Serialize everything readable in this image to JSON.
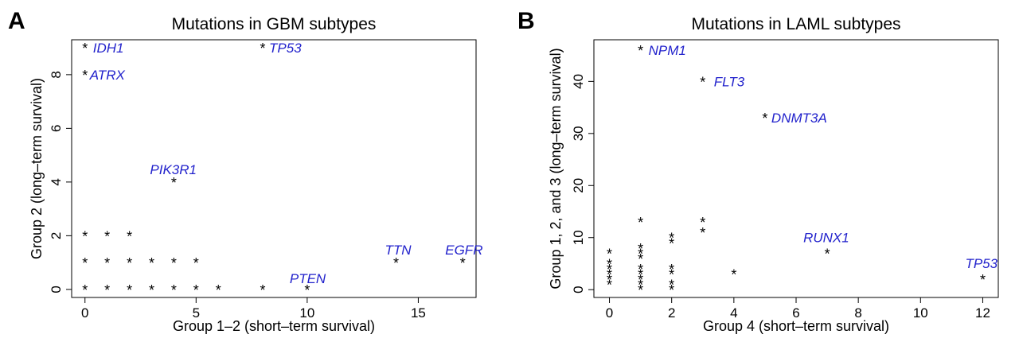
{
  "chart_data": [
    {
      "type": "scatter",
      "panel_letter": "A",
      "title": "Mutations in GBM subtypes",
      "xlabel": "Group 1–2 (short–term survival)",
      "ylabel": "Group 2 (long–term survival)",
      "xlim": [
        -0.6,
        17.6
      ],
      "ylim": [
        -0.3,
        9.3
      ],
      "xticks": [
        0,
        5,
        10,
        15
      ],
      "yticks": [
        0,
        2,
        4,
        6,
        8
      ],
      "label_color": "#2222cc",
      "points": [
        {
          "x": 0,
          "y": 9,
          "label": "IDH1"
        },
        {
          "x": 0,
          "y": 8,
          "label": "ATRX"
        },
        {
          "x": 8,
          "y": 9,
          "label": "TP53"
        },
        {
          "x": 4,
          "y": 4,
          "label": "PIK3R1"
        },
        {
          "x": 14,
          "y": 1,
          "label": "TTN"
        },
        {
          "x": 17,
          "y": 1,
          "label": "EGFR"
        },
        {
          "x": 10,
          "y": 0,
          "label": "PTEN"
        },
        {
          "x": 0,
          "y": 2,
          "label": ""
        },
        {
          "x": 1,
          "y": 2,
          "label": ""
        },
        {
          "x": 2,
          "y": 2,
          "label": ""
        },
        {
          "x": 0,
          "y": 1,
          "label": ""
        },
        {
          "x": 1,
          "y": 1,
          "label": ""
        },
        {
          "x": 2,
          "y": 1,
          "label": ""
        },
        {
          "x": 3,
          "y": 1,
          "label": ""
        },
        {
          "x": 4,
          "y": 1,
          "label": ""
        },
        {
          "x": 5,
          "y": 1,
          "label": ""
        },
        {
          "x": 0,
          "y": 0,
          "label": ""
        },
        {
          "x": 1,
          "y": 0,
          "label": ""
        },
        {
          "x": 2,
          "y": 0,
          "label": ""
        },
        {
          "x": 3,
          "y": 0,
          "label": ""
        },
        {
          "x": 4,
          "y": 0,
          "label": ""
        },
        {
          "x": 5,
          "y": 0,
          "label": ""
        },
        {
          "x": 6,
          "y": 0,
          "label": ""
        },
        {
          "x": 8,
          "y": 0,
          "label": ""
        }
      ]
    },
    {
      "type": "scatter",
      "panel_letter": "B",
      "title": "Mutations in LAML subtypes",
      "xlabel": "Group 4 (short–term survival)",
      "ylabel": "Group 1, 2, and 3 (long–term survival)",
      "xlim": [
        -0.5,
        12.5
      ],
      "ylim": [
        -1.5,
        48
      ],
      "xticks": [
        0,
        2,
        4,
        6,
        8,
        10,
        12
      ],
      "yticks": [
        0,
        10,
        20,
        30,
        40
      ],
      "label_color": "#2222cc",
      "points": [
        {
          "x": 1,
          "y": 46,
          "label": "NPM1"
        },
        {
          "x": 3,
          "y": 40,
          "label": "FLT3"
        },
        {
          "x": 5,
          "y": 33,
          "label": "DNMT3A"
        },
        {
          "x": 7,
          "y": 7,
          "label": "RUNX1"
        },
        {
          "x": 12,
          "y": 2,
          "label": "TP53"
        },
        {
          "x": 0,
          "y": 7,
          "label": ""
        },
        {
          "x": 0,
          "y": 5,
          "label": ""
        },
        {
          "x": 0,
          "y": 4,
          "label": ""
        },
        {
          "x": 0,
          "y": 3,
          "label": ""
        },
        {
          "x": 0,
          "y": 2,
          "label": ""
        },
        {
          "x": 0,
          "y": 1,
          "label": ""
        },
        {
          "x": 1,
          "y": 13,
          "label": ""
        },
        {
          "x": 1,
          "y": 8,
          "label": ""
        },
        {
          "x": 1,
          "y": 7,
          "label": ""
        },
        {
          "x": 1,
          "y": 6,
          "label": ""
        },
        {
          "x": 1,
          "y": 4,
          "label": ""
        },
        {
          "x": 1,
          "y": 3,
          "label": ""
        },
        {
          "x": 1,
          "y": 2,
          "label": ""
        },
        {
          "x": 1,
          "y": 1,
          "label": ""
        },
        {
          "x": 1,
          "y": 0,
          "label": ""
        },
        {
          "x": 2,
          "y": 10,
          "label": ""
        },
        {
          "x": 2,
          "y": 9,
          "label": ""
        },
        {
          "x": 2,
          "y": 4,
          "label": ""
        },
        {
          "x": 2,
          "y": 3,
          "label": ""
        },
        {
          "x": 2,
          "y": 1,
          "label": ""
        },
        {
          "x": 2,
          "y": 0,
          "label": ""
        },
        {
          "x": 3,
          "y": 13,
          "label": ""
        },
        {
          "x": 3,
          "y": 11,
          "label": ""
        },
        {
          "x": 4,
          "y": 3,
          "label": ""
        }
      ]
    }
  ]
}
